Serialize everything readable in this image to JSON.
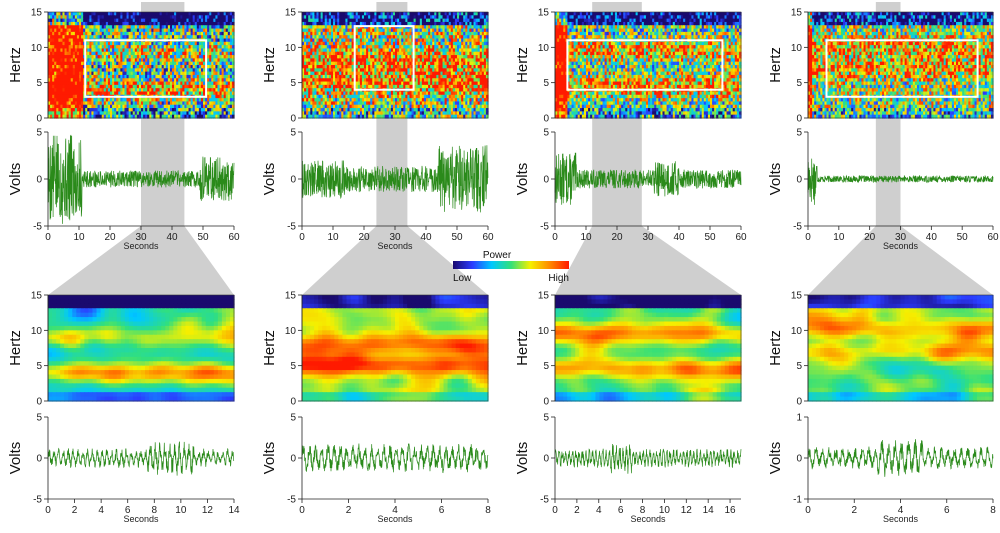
{
  "legend": {
    "title": "Power",
    "low_label": "Low",
    "high_label": "High",
    "colors": [
      "#1a0a6e",
      "#2b3cff",
      "#00c8ff",
      "#33e07a",
      "#f5f000",
      "#ff8a00",
      "#ff1a00"
    ]
  },
  "colors": {
    "trace": "#2a8a1a",
    "highlight": "#cfcfcf",
    "box": "#ffffff"
  },
  "chart_data": [
    {
      "type": "heatmap",
      "panel": "overview-spectrogram-1",
      "ylabel": "Hertz",
      "xlim": [
        0,
        60
      ],
      "ylim": [
        0,
        15
      ],
      "yticks": [
        0,
        5,
        10,
        15
      ],
      "highlight_x": [
        30,
        44
      ],
      "box": {
        "x": [
          12,
          51
        ],
        "y": [
          3,
          11
        ]
      }
    },
    {
      "type": "line",
      "panel": "overview-trace-1",
      "ylabel": "Volts",
      "xlabel": "Seconds",
      "xlim": [
        0,
        60
      ],
      "ylim": [
        -5,
        5
      ],
      "xticks": [
        0,
        10,
        20,
        30,
        40,
        50,
        60
      ],
      "yticks": [
        -5,
        0,
        5
      ],
      "highlight_x": [
        30,
        44
      ]
    },
    {
      "type": "heatmap",
      "panel": "overview-spectrogram-2",
      "ylabel": "Hertz",
      "xlim": [
        0,
        60
      ],
      "ylim": [
        0,
        15
      ],
      "yticks": [
        0,
        5,
        10,
        15
      ],
      "highlight_x": [
        24,
        34
      ],
      "box": {
        "x": [
          17,
          36
        ],
        "y": [
          4,
          13
        ]
      }
    },
    {
      "type": "line",
      "panel": "overview-trace-2",
      "ylabel": "Volts",
      "xlabel": "Seconds",
      "xlim": [
        0,
        60
      ],
      "ylim": [
        -5,
        5
      ],
      "xticks": [
        0,
        10,
        20,
        30,
        40,
        50,
        60
      ],
      "yticks": [
        -5,
        0,
        5
      ],
      "highlight_x": [
        24,
        34
      ]
    },
    {
      "type": "heatmap",
      "panel": "overview-spectrogram-3",
      "ylabel": "Hertz",
      "xlim": [
        0,
        60
      ],
      "ylim": [
        0,
        15
      ],
      "yticks": [
        0,
        5,
        10,
        15
      ],
      "highlight_x": [
        12,
        28
      ],
      "box": {
        "x": [
          4,
          54
        ],
        "y": [
          4,
          11
        ]
      }
    },
    {
      "type": "line",
      "panel": "overview-trace-3",
      "ylabel": "Volts",
      "xlabel": "",
      "xlim": [
        0,
        60
      ],
      "ylim": [
        -5,
        5
      ],
      "xticks": [
        0,
        10,
        20,
        30,
        40,
        50,
        60
      ],
      "yticks": [
        -5,
        0,
        5
      ],
      "highlight_x": [
        12,
        28
      ]
    },
    {
      "type": "heatmap",
      "panel": "overview-spectrogram-4",
      "ylabel": "Hertz",
      "xlim": [
        0,
        60
      ],
      "ylim": [
        0,
        15
      ],
      "yticks": [
        0,
        5,
        10,
        15
      ],
      "highlight_x": [
        22,
        30
      ],
      "box": {
        "x": [
          6,
          55
        ],
        "y": [
          3,
          11
        ]
      }
    },
    {
      "type": "line",
      "panel": "overview-trace-4",
      "ylabel": "Volts",
      "xlabel": "Seconds",
      "xlim": [
        0,
        60
      ],
      "ylim": [
        -5,
        5
      ],
      "xticks": [
        0,
        10,
        20,
        30,
        40,
        50,
        60
      ],
      "yticks": [
        -5,
        0,
        5
      ],
      "highlight_x": [
        22,
        30
      ]
    },
    {
      "type": "heatmap",
      "panel": "zoom-spectrogram-1",
      "ylabel": "Hertz",
      "xlim": [
        0,
        14
      ],
      "ylim": [
        0,
        15
      ],
      "yticks": [
        0,
        5,
        10,
        15
      ]
    },
    {
      "type": "line",
      "panel": "zoom-trace-1",
      "ylabel": "Volts",
      "xlabel": "Seconds",
      "xlim": [
        0,
        14
      ],
      "ylim": [
        -5,
        5
      ],
      "xticks": [
        0,
        2,
        4,
        6,
        8,
        10,
        12,
        14
      ],
      "yticks": [
        -5,
        0,
        5
      ]
    },
    {
      "type": "heatmap",
      "panel": "zoom-spectrogram-2",
      "ylabel": "Hertz",
      "xlim": [
        0,
        8
      ],
      "ylim": [
        0,
        15
      ],
      "yticks": [
        0,
        5,
        10,
        15
      ]
    },
    {
      "type": "line",
      "panel": "zoom-trace-2",
      "ylabel": "Volts",
      "xlabel": "Seconds",
      "xlim": [
        0,
        8
      ],
      "ylim": [
        -5,
        5
      ],
      "xticks": [
        0,
        2,
        4,
        6,
        8
      ],
      "yticks": [
        -5,
        0,
        5
      ]
    },
    {
      "type": "heatmap",
      "panel": "zoom-spectrogram-3",
      "ylabel": "Hertz",
      "xlim": [
        0,
        17
      ],
      "ylim": [
        0,
        15
      ],
      "yticks": [
        0,
        5,
        10,
        15
      ]
    },
    {
      "type": "line",
      "panel": "zoom-trace-3",
      "ylabel": "Volts",
      "xlabel": "Seconds",
      "xlim": [
        0,
        17
      ],
      "ylim": [
        -5,
        5
      ],
      "xticks": [
        0,
        2,
        4,
        6,
        8,
        10,
        12,
        14,
        16
      ],
      "yticks": [
        -5,
        0,
        5
      ]
    },
    {
      "type": "heatmap",
      "panel": "zoom-spectrogram-4",
      "ylabel": "Hertz",
      "xlim": [
        0,
        8
      ],
      "ylim": [
        0,
        15
      ],
      "yticks": [
        0,
        5,
        10,
        15
      ]
    },
    {
      "type": "line",
      "panel": "zoom-trace-4",
      "ylabel": "Volts",
      "xlabel": "Seconds",
      "xlim": [
        0,
        8
      ],
      "ylim": [
        -1,
        1
      ],
      "xticks": [
        0,
        2,
        4,
        6,
        8
      ],
      "yticks": [
        -1,
        0,
        1
      ]
    }
  ]
}
